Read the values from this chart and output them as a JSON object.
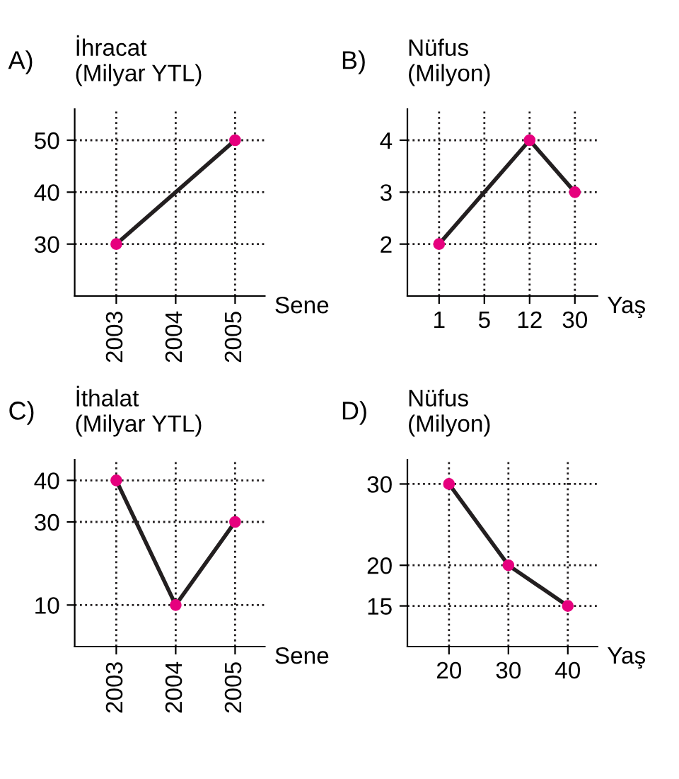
{
  "chart_data": [
    {
      "type": "line",
      "title": "A)",
      "ylabel": "İhracat\n(Milyar YTL)",
      "xlabel": "Sene",
      "categories": [
        "2003",
        "2004",
        "2005"
      ],
      "series": [
        {
          "color": "#231f20",
          "colors": [
            "#e6007e",
            null,
            "#e6007e"
          ],
          "values": [
            30,
            null,
            50
          ]
        }
      ],
      "ylim": [
        20,
        56
      ],
      "yticks": [
        30,
        40,
        50
      ],
      "grid": true,
      "marker": "circle",
      "line_style": "solid"
    },
    {
      "type": "line",
      "title": "B)",
      "ylabel": "Nüfus\n(Milyon)",
      "xlabel": "Yaş",
      "categories": [
        "1",
        "5",
        "12",
        "30"
      ],
      "series": [
        {
          "color": "#231f20",
          "colors": [
            "#e6007e",
            null,
            "#e6007e",
            "#e6007e"
          ],
          "values": [
            2,
            null,
            4,
            3
          ]
        }
      ],
      "ylim": [
        1,
        4.6
      ],
      "yticks": [
        2,
        3,
        4
      ],
      "grid": true,
      "marker": "circle",
      "line_style": "solid"
    },
    {
      "type": "line",
      "title": "C)",
      "ylabel": "İthalat\n(Milyar YTL)",
      "xlabel": "Sene",
      "categories": [
        "2003",
        "2004",
        "2005"
      ],
      "series": [
        {
          "color": "#231f20",
          "colors": [
            "#e6007e",
            "#e6007e",
            "#e6007e"
          ],
          "values": [
            40,
            10,
            30
          ]
        }
      ],
      "ylim": [
        0,
        45
      ],
      "yticks": [
        10,
        30,
        40
      ],
      "grid": true,
      "marker": "circle",
      "line_style": "solid"
    },
    {
      "type": "line",
      "title": "D)",
      "ylabel": "Nüfus\n(Milyon)",
      "xlabel": "Yaş",
      "categories": [
        "20",
        "30",
        "40"
      ],
      "series": [
        {
          "color": "#231f20",
          "colors": [
            "#e6007e",
            "#e6007e",
            "#e6007e"
          ],
          "values": [
            30,
            20,
            15
          ]
        }
      ],
      "ylim": [
        10,
        33
      ],
      "yticks": [
        15,
        20,
        30
      ],
      "grid": true,
      "marker": "circle",
      "line_style": "solid"
    }
  ]
}
